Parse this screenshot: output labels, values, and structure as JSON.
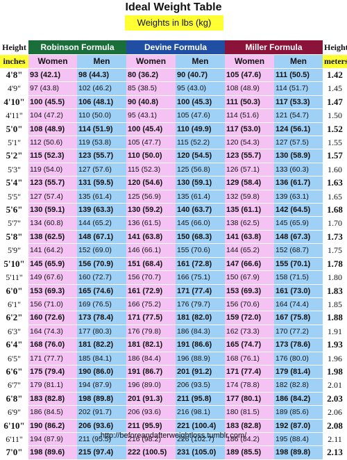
{
  "title": "Ideal Weight Table",
  "subtitle": "Weights in lbs (kg)",
  "header": {
    "height_label": "Height",
    "height_unit": "inches",
    "meters_label": "Height",
    "meters_unit": "meters",
    "robinson": "Robinson Formula",
    "devine": "Devine Formula",
    "miller": "Miller Formula",
    "women": "Women",
    "men": "Men"
  },
  "rows": [
    {
      "h": "4'8\"",
      "rw": "93 (42.1)",
      "rm": "98 (44.3)",
      "dw": "80 (36.2)",
      "dm": "90 (40.7)",
      "mw": "105 (47.6)",
      "mm": "111 (50.5)",
      "m": "1.42",
      "b": true
    },
    {
      "h": "4'9\"",
      "rw": "97 (43.8)",
      "rm": "102 (46.2)",
      "dw": "85 (38.5)",
      "dm": "95 (43.0)",
      "mw": "108 (48.9)",
      "mm": "114 (51.7)",
      "m": "1.45",
      "b": false
    },
    {
      "h": "4'10\"",
      "rw": "100 (45.5)",
      "rm": "106 (48.1)",
      "dw": "90 (40.8)",
      "dm": "100 (45.3)",
      "mw": "111 (50.3)",
      "mm": "117 (53.3)",
      "m": "1.47",
      "b": true
    },
    {
      "h": "4'11\"",
      "rw": "104 (47.2)",
      "rm": "110 (50.0)",
      "dw": "95 (43.1)",
      "dm": "105 (47.6)",
      "mw": "114 (51.6)",
      "mm": "121 (54.7)",
      "m": "1.50",
      "b": false
    },
    {
      "h": "5'0\"",
      "rw": "108 (48.9)",
      "rm": "114 (51.9)",
      "dw": "100 (45.4)",
      "dm": "110 (49.9)",
      "mw": "117 (53.0)",
      "mm": "124 (56.1)",
      "m": "1.52",
      "b": true
    },
    {
      "h": "5'1\"",
      "rw": "112 (50.6)",
      "rm": "119 (53.8)",
      "dw": "105 (47.7)",
      "dm": "115 (52.2)",
      "mw": "120 (54.3)",
      "mm": "127 (57.5)",
      "m": "1.55",
      "b": false
    },
    {
      "h": "5'2\"",
      "rw": "115 (52.3)",
      "rm": "123 (55.7)",
      "dw": "110 (50.0)",
      "dm": "120 (54.5)",
      "mw": "123 (55.7)",
      "mm": "130 (58.9)",
      "m": "1.57",
      "b": true
    },
    {
      "h": "5'3\"",
      "rw": "119 (54.0)",
      "rm": "127 (57.6)",
      "dw": "115 (52.3)",
      "dm": "125 (56.8)",
      "mw": "126 (57.1)",
      "mm": "133 (60.3)",
      "m": "1.60",
      "b": false
    },
    {
      "h": "5'4\"",
      "rw": "123 (55.7)",
      "rm": "131 (59.5)",
      "dw": "120 (54.6)",
      "dm": "130 (59.1)",
      "mw": "129 (58.4)",
      "mm": "136 (61.7)",
      "m": "1.63",
      "b": true
    },
    {
      "h": "5'5\"",
      "rw": "127 (57.4)",
      "rm": "135 (61.4)",
      "dw": "125 (56.9)",
      "dm": "135 (61.4)",
      "mw": "132 (59.8)",
      "mm": "139 (63.1)",
      "m": "1.65",
      "b": false
    },
    {
      "h": "5'6\"",
      "rw": "130 (59.1)",
      "rm": "139 (63.3)",
      "dw": "130 (59.2)",
      "dm": "140 (63.7)",
      "mw": "135 (61.1)",
      "mm": "142 (64.5)",
      "m": "1.68",
      "b": true
    },
    {
      "h": "5'7\"",
      "rw": "134 (60.8)",
      "rm": "144 (65.2)",
      "dw": "136 (61.5)",
      "dm": "145 (66.0)",
      "mw": "138 (62.5)",
      "mm": "145 (65.9)",
      "m": "1.70",
      "b": false
    },
    {
      "h": "5'8\"",
      "rw": "138 (62.5)",
      "rm": "148 (67.1)",
      "dw": "141 (63.8)",
      "dm": "150 (68.3)",
      "mw": "141 (63.8)",
      "mm": "148 (67.3)",
      "m": "1.73",
      "b": true
    },
    {
      "h": "5'9\"",
      "rw": "141 (64.2)",
      "rm": "152 (69.0)",
      "dw": "146 (66.1)",
      "dm": "155 (70.6)",
      "mw": "144 (65.2)",
      "mm": "152 (68.7)",
      "m": "1.75",
      "b": false
    },
    {
      "h": "5'10\"",
      "rw": "145 (65.9)",
      "rm": "156 (70.9)",
      "dw": "151 (68.4)",
      "dm": "161 (72.8)",
      "mw": "147 (66.6)",
      "mm": "155 (70.1)",
      "m": "1.78",
      "b": true
    },
    {
      "h": "5'11\"",
      "rw": "149 (67.6)",
      "rm": "160 (72.7)",
      "dw": "156 (70.7)",
      "dm": "166 (75.1)",
      "mw": "150 (67.9)",
      "mm": "158 (71.5)",
      "m": "1.80",
      "b": false
    },
    {
      "h": "6'0\"",
      "rw": "153 (69.3)",
      "rm": "165 (74.6)",
      "dw": "161 (72.9)",
      "dm": "171 (77.4)",
      "mw": "153 (69.3)",
      "mm": "161 (73.0)",
      "m": "1.83",
      "b": true
    },
    {
      "h": "6'1\"",
      "rw": "156 (71.0)",
      "rm": "169 (76.5)",
      "dw": "166 (75.2)",
      "dm": "176 (79.7)",
      "mw": "156 (70.6)",
      "mm": "164 (74.4)",
      "m": "1.85",
      "b": false
    },
    {
      "h": "6'2\"",
      "rw": "160 (72.6)",
      "rm": "173 (78.4)",
      "dw": "171 (77.5)",
      "dm": "181 (82.0)",
      "mw": "159 (72.0)",
      "mm": "167 (75.8)",
      "m": "1.88",
      "b": true
    },
    {
      "h": "6'3\"",
      "rw": "164 (74.3)",
      "rm": "177 (80.3)",
      "dw": "176 (79.8)",
      "dm": "186 (84.3)",
      "mw": "162 (73.3)",
      "mm": "170 (77.2)",
      "m": "1.91",
      "b": false
    },
    {
      "h": "6'4\"",
      "rw": "168 (76.0)",
      "rm": "181 (82.2)",
      "dw": "181 (82.1)",
      "dm": "191 (86.6)",
      "mw": "165 (74.7)",
      "mm": "173 (78.6)",
      "m": "1.93",
      "b": true
    },
    {
      "h": "6'5\"",
      "rw": "171 (77.7)",
      "rm": "185 (84.1)",
      "dw": "186 (84.4)",
      "dm": "196 (88.9)",
      "mw": "168 (76.1)",
      "mm": "176 (80.0)",
      "m": "1.96",
      "b": false
    },
    {
      "h": "6'6\"",
      "rw": "175 (79.4)",
      "rm": "190 (86.0)",
      "dw": "191 (86.7)",
      "dm": "201 (91.2)",
      "mw": "171 (77.4)",
      "mm": "179 (81.4)",
      "m": "1.98",
      "b": true
    },
    {
      "h": "6'7\"",
      "rw": "179 (81.1)",
      "rm": "194 (87.9)",
      "dw": "196 (89.0)",
      "dm": "206 (93.5)",
      "mw": "174 (78.8)",
      "mm": "182 (82.8)",
      "m": "2.01",
      "b": false
    },
    {
      "h": "6'8\"",
      "rw": "183 (82.8)",
      "rm": "198 (89.8)",
      "dw": "201 (91.3)",
      "dm": "211 (95.8)",
      "mw": "177 (80.1)",
      "mm": "186 (84.2)",
      "m": "2.03",
      "b": true
    },
    {
      "h": "6'9\"",
      "rw": "186 (84.5)",
      "rm": "202 (91.7)",
      "dw": "206 (93.6)",
      "dm": "216 (98.1)",
      "mw": "180 (81.5)",
      "mm": "189 (85.6)",
      "m": "2.06",
      "b": false
    },
    {
      "h": "6'10\"",
      "rw": "190 (86.2)",
      "rm": "206 (93.6)",
      "dw": "211 (95.9)",
      "dm": "221 (100.4)",
      "mw": "183 (82.8)",
      "mm": "192 (87.0)",
      "m": "2.08",
      "b": true
    },
    {
      "h": "6'11\"",
      "rw": "194 (87.9)",
      "rm": "211 (95.5)",
      "dw": "216 (98.2)",
      "dm": "226 (102.7)",
      "mw": "186 (84.2)",
      "mm": "195 (88.4)",
      "m": "2.11",
      "b": false
    },
    {
      "h": "7'0\"",
      "rw": "198 (89.6)",
      "rm": "215 (97.4)",
      "dw": "222 (100.5)",
      "dm": "231 (105.0)",
      "mw": "189 (85.5)",
      "mm": "198 (89.8)",
      "m": "2.13",
      "b": true
    }
  ],
  "footer": "http://beforeandafterweightloss.tumblr.com/"
}
